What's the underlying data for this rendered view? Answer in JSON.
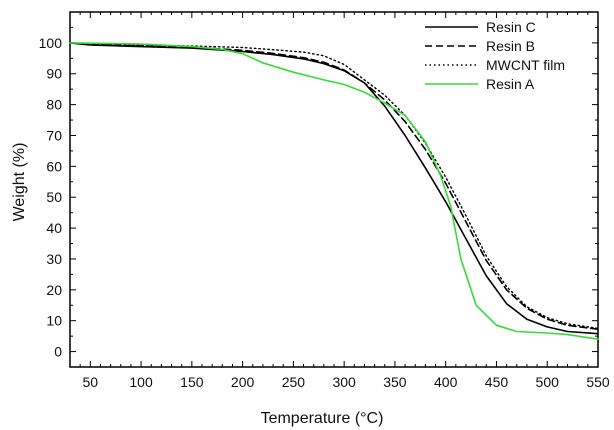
{
  "chart_data": {
    "type": "line",
    "xlabel": "Temperature (°C)",
    "ylabel": "Weight (%)",
    "xlim": [
      30,
      550
    ],
    "ylim": [
      -5,
      110
    ],
    "xticks": [
      50,
      100,
      150,
      200,
      250,
      300,
      350,
      400,
      450,
      500,
      550
    ],
    "yticks": [
      0,
      10,
      20,
      30,
      40,
      50,
      60,
      70,
      80,
      90,
      100
    ],
    "grid": false,
    "legend_position": "top-right",
    "series": [
      {
        "name": "Resin C",
        "color": "#000000",
        "dash": "solid",
        "x": [
          30,
          50,
          100,
          150,
          200,
          230,
          260,
          280,
          300,
          320,
          340,
          360,
          380,
          400,
          420,
          440,
          460,
          480,
          500,
          520,
          550
        ],
        "y": [
          100,
          99.3,
          98.8,
          98.3,
          97.2,
          96.2,
          94.8,
          93.3,
          91.0,
          87.0,
          79.5,
          70.0,
          59.5,
          48.5,
          36.5,
          24.5,
          15.5,
          10.5,
          8.0,
          6.5,
          5.8
        ]
      },
      {
        "name": "Resin B",
        "color": "#000000",
        "dash": "dashed",
        "x": [
          30,
          50,
          100,
          150,
          200,
          230,
          260,
          280,
          300,
          320,
          340,
          360,
          380,
          400,
          420,
          440,
          460,
          480,
          500,
          520,
          550
        ],
        "y": [
          100,
          99.5,
          99.0,
          98.6,
          97.6,
          96.6,
          95.2,
          93.7,
          91.2,
          87.0,
          81.5,
          74.5,
          65.5,
          54.5,
          42.0,
          29.5,
          20.0,
          14.0,
          10.5,
          8.5,
          7.2
        ]
      },
      {
        "name": "MWCNT film",
        "color": "#000000",
        "dash": "dotted",
        "x": [
          30,
          50,
          100,
          150,
          200,
          230,
          260,
          280,
          300,
          320,
          340,
          360,
          380,
          400,
          420,
          440,
          460,
          480,
          500,
          520,
          550
        ],
        "y": [
          100,
          99.6,
          99.3,
          99.0,
          98.5,
          97.8,
          97.0,
          95.8,
          93.0,
          88.0,
          83.0,
          76.5,
          67.5,
          56.5,
          44.0,
          31.0,
          21.0,
          14.5,
          11.0,
          9.0,
          7.5
        ]
      },
      {
        "name": "Resin A",
        "color": "#33dd33",
        "dash": "solid",
        "x": [
          30,
          50,
          100,
          150,
          180,
          200,
          220,
          250,
          280,
          300,
          320,
          340,
          360,
          380,
          395,
          405,
          415,
          430,
          450,
          470,
          500,
          520,
          550
        ],
        "y": [
          100,
          99.9,
          99.6,
          98.8,
          97.9,
          96.5,
          93.5,
          90.5,
          88.0,
          86.5,
          84.0,
          80.5,
          76.5,
          68.0,
          57.0,
          47.0,
          30.0,
          15.0,
          8.5,
          6.5,
          6.0,
          5.5,
          4.0
        ]
      }
    ]
  }
}
